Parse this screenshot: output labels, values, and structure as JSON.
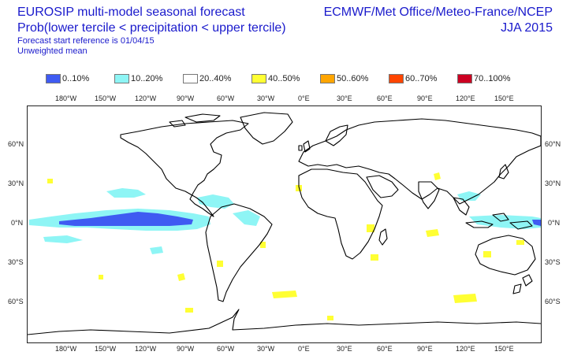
{
  "header": {
    "title_line1": "EUROSIP multi-model seasonal forecast",
    "title_line2": "Prob(lower tercile < precipitation < upper tercile)",
    "start_reference": "Forecast start reference is 01/04/15",
    "averaging": "Unweighted mean",
    "centres": "ECMWF/Met Office/Meteo-France/NCEP",
    "season": "JJA 2015"
  },
  "legend": [
    {
      "label": "0..10%",
      "color": "#3f5bf2"
    },
    {
      "label": "10..20%",
      "color": "#8ef5f5"
    },
    {
      "label": "20..40%",
      "color": "#ffffff"
    },
    {
      "label": "40..50%",
      "color": "#ffff33"
    },
    {
      "label": "50..60%",
      "color": "#ffa500"
    },
    {
      "label": "60..70%",
      "color": "#ff4500"
    },
    {
      "label": "70..100%",
      "color": "#cc0022"
    }
  ],
  "axes": {
    "lon_ticks_top": [
      "180°W",
      "150°W",
      "120°W",
      "90°W",
      "60°W",
      "30°W",
      "0°E",
      "30°E",
      "60°E",
      "90°E",
      "120°E",
      "150°E"
    ],
    "lon_ticks_bottom": [
      "180°W",
      "150°W",
      "120°W",
      "90°W",
      "60°W",
      "30°W",
      "0°E",
      "30°E",
      "60°E",
      "90°E",
      "120°E",
      "150°E"
    ],
    "lat_ticks": [
      "60°N",
      "30°N",
      "0°N",
      "30°S",
      "60°S"
    ]
  },
  "map": {
    "land_outline_color": "#000000",
    "icons": [
      "world-coastlines"
    ]
  }
}
